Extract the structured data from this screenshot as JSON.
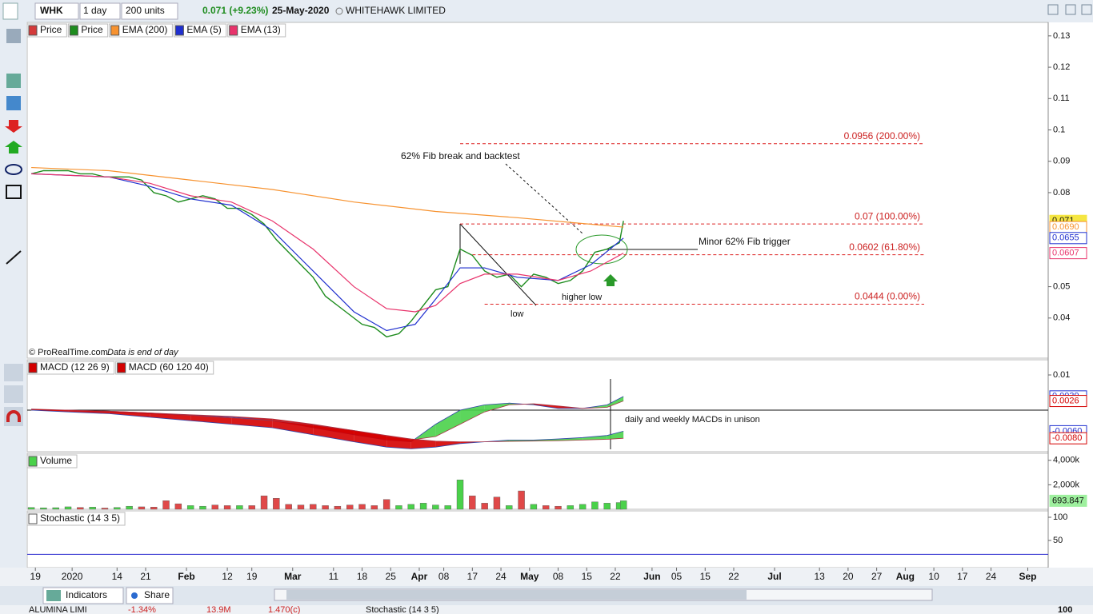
{
  "toolbar": {
    "symbol": "WHK",
    "interval": "1 day",
    "units": "200 units",
    "last": "0.071 (+9.23%)",
    "date": "25-May-2020",
    "name": "WHITEHAWK LIMITED"
  },
  "copyright": "© ProRealTime.com",
  "data_note": "Data is end of day",
  "annotations": [
    "62% Fib break and backtest",
    "Minor 62% Fib trigger",
    "higher low",
    "low",
    "daily and weekly MACDs in unison"
  ],
  "bottom_toolbar": {
    "indicators": "Indicators",
    "share": "Share"
  },
  "watchlist_row": [
    "ALUMINA LIMI",
    "-1.34%",
    "13.9M",
    "1.470(c)",
    "Stochastic (14 3 5)",
    "100"
  ],
  "chart_data": [
    {
      "type": "line",
      "xlim": [
        0,
        250
      ],
      "xticks": [
        {
          "value": 2,
          "label": "19"
        },
        {
          "value": 11,
          "label": "2020"
        },
        {
          "value": 22,
          "label": "14"
        },
        {
          "value": 29,
          "label": "21"
        },
        {
          "value": 39,
          "label": "Feb"
        },
        {
          "value": 49,
          "label": "12"
        },
        {
          "value": 55,
          "label": "19"
        },
        {
          "value": 65,
          "label": "Mar"
        },
        {
          "value": 75,
          "label": "11"
        },
        {
          "value": 82,
          "label": "18"
        },
        {
          "value": 89,
          "label": "25"
        },
        {
          "value": 96,
          "label": "Apr"
        },
        {
          "value": 102,
          "label": "08"
        },
        {
          "value": 109,
          "label": "17"
        },
        {
          "value": 116,
          "label": "24"
        },
        {
          "value": 123,
          "label": "May"
        },
        {
          "value": 130,
          "label": "08"
        },
        {
          "value": 137,
          "label": "15"
        },
        {
          "value": 144,
          "label": "22"
        },
        {
          "value": 153,
          "label": "Jun"
        },
        {
          "value": 159,
          "label": "05"
        },
        {
          "value": 166,
          "label": "15"
        },
        {
          "value": 173,
          "label": "22"
        },
        {
          "value": 183,
          "label": "Jul"
        },
        {
          "value": 194,
          "label": "13"
        },
        {
          "value": 201,
          "label": "20"
        },
        {
          "value": 208,
          "label": "27"
        },
        {
          "value": 215,
          "label": "Aug"
        },
        {
          "value": 222,
          "label": "10"
        },
        {
          "value": 229,
          "label": "17"
        },
        {
          "value": 236,
          "label": "24"
        },
        {
          "value": 245,
          "label": "Sep"
        }
      ],
      "ylim": [
        0.0272,
        0.1343
      ],
      "yticks": [
        0.04,
        0.05,
        0.08,
        0.09,
        0.1,
        0.11,
        0.12,
        0.13
      ],
      "series": [
        {
          "name": "Price",
          "color": "#1e8c1e",
          "down_name": "Price",
          "down_color": "#d43a3a",
          "x": [
            1,
            4,
            7,
            10,
            13,
            16,
            19,
            22,
            25,
            28,
            31,
            34,
            37,
            40,
            43,
            46,
            49,
            52,
            55,
            58,
            61,
            64,
            67,
            70,
            73,
            76,
            79,
            82,
            85,
            88,
            91,
            94,
            97,
            100,
            103,
            106,
            109,
            112,
            115,
            118,
            121,
            124,
            127,
            130,
            133,
            136,
            139,
            142,
            145,
            146
          ],
          "values": [
            0.086,
            0.087,
            0.087,
            0.087,
            0.086,
            0.086,
            0.085,
            0.085,
            0.085,
            0.084,
            0.08,
            0.079,
            0.077,
            0.078,
            0.079,
            0.078,
            0.075,
            0.075,
            0.073,
            0.07,
            0.065,
            0.061,
            0.057,
            0.053,
            0.047,
            0.044,
            0.041,
            0.038,
            0.037,
            0.034,
            0.035,
            0.039,
            0.044,
            0.049,
            0.05,
            0.062,
            0.06,
            0.055,
            0.053,
            0.054,
            0.05,
            0.054,
            0.053,
            0.051,
            0.052,
            0.055,
            0.061,
            0.062,
            0.064,
            0.071
          ]
        },
        {
          "name": "EMA (200)",
          "color": "#f7922f",
          "x": [
            1,
            20,
            40,
            60,
            80,
            100,
            120,
            146
          ],
          "values": [
            0.088,
            0.087,
            0.084,
            0.081,
            0.077,
            0.074,
            0.072,
            0.069
          ]
        },
        {
          "name": "EMA (5)",
          "color": "#1f2fcf",
          "x": [
            1,
            20,
            30,
            40,
            50,
            60,
            70,
            80,
            88,
            95,
            100,
            106,
            112,
            120,
            130,
            138,
            146
          ],
          "values": [
            0.086,
            0.085,
            0.082,
            0.078,
            0.076,
            0.068,
            0.055,
            0.042,
            0.036,
            0.038,
            0.046,
            0.056,
            0.056,
            0.053,
            0.052,
            0.057,
            0.0655
          ]
        },
        {
          "name": "EMA (13)",
          "color": "#e8336b",
          "x": [
            1,
            20,
            30,
            40,
            50,
            60,
            70,
            80,
            88,
            95,
            100,
            106,
            112,
            120,
            130,
            138,
            146
          ],
          "values": [
            0.086,
            0.085,
            0.083,
            0.079,
            0.077,
            0.071,
            0.062,
            0.05,
            0.043,
            0.042,
            0.044,
            0.051,
            0.054,
            0.054,
            0.052,
            0.055,
            0.0607
          ]
        }
      ],
      "fib_levels": [
        {
          "value": 0.0956,
          "label": "0.0956 (200.00%)"
        },
        {
          "value": 0.07,
          "label": "0.07 (100.00%)"
        },
        {
          "value": 0.0602,
          "label": "0.0602 (61.80%)"
        },
        {
          "value": 0.0444,
          "label": "0.0444 (0.00%)"
        }
      ],
      "price_tags": [
        {
          "value": 0.071,
          "label": "0.071",
          "color": "#f5e642"
        },
        {
          "value": 0.069,
          "label": "0.0690",
          "color": "#f7922f"
        },
        {
          "value": 0.0655,
          "label": "0.0655",
          "color": "#1f2fcf"
        },
        {
          "value": 0.0607,
          "label": "0.0607",
          "color": "#e8336b"
        }
      ]
    },
    {
      "type": "macd",
      "ylim": [
        -0.01182,
        0.01432
      ],
      "yticks": [
        0.01
      ],
      "series": [
        {
          "name": "MACD (12 26 9)",
          "color": "#4ad14a",
          "down_color": "#d40000",
          "x": [
            1,
            10,
            20,
            30,
            40,
            50,
            60,
            70,
            80,
            88,
            94,
            100,
            106,
            112,
            118,
            124,
            130,
            136,
            142,
            146
          ],
          "values": [
            0,
            0,
            -0.0005,
            -0.001,
            -0.0015,
            -0.002,
            -0.003,
            -0.005,
            -0.007,
            -0.0085,
            -0.009,
            -0.004,
            0,
            0.0015,
            0.002,
            0.0015,
            0.0005,
            0.0005,
            0.0015,
            0.0039
          ],
          "signal": [
            0,
            0,
            -0.0003,
            -0.0008,
            -0.0013,
            -0.0018,
            -0.0025,
            -0.004,
            -0.0058,
            -0.0075,
            -0.0085,
            -0.0075,
            -0.004,
            -0.0005,
            0.0015,
            0.0018,
            0.0012,
            0.0005,
            0.0008,
            0.0026
          ]
        },
        {
          "name": "MACD (60 120 40)",
          "color": "#4ad14a",
          "down_color": "#d40000",
          "x": [
            1,
            10,
            20,
            30,
            40,
            50,
            60,
            70,
            80,
            88,
            94,
            100,
            106,
            112,
            118,
            124,
            130,
            136,
            142,
            146
          ],
          "values": [
            0,
            -0.0005,
            -0.001,
            -0.002,
            -0.003,
            -0.004,
            -0.005,
            -0.007,
            -0.009,
            -0.0105,
            -0.011,
            -0.0105,
            -0.0095,
            -0.009,
            -0.0085,
            -0.0085,
            -0.0082,
            -0.0078,
            -0.0072,
            -0.006
          ],
          "signal": [
            0.0003,
            0,
            -0.0003,
            -0.0008,
            -0.0015,
            -0.0022,
            -0.003,
            -0.0042,
            -0.0058,
            -0.0072,
            -0.0082,
            -0.0088,
            -0.009,
            -0.009,
            -0.0089,
            -0.0088,
            -0.0087,
            -0.0085,
            -0.0083,
            -0.008
          ]
        }
      ],
      "price_tags": [
        {
          "value": 0.0039,
          "label": "0.0039",
          "color": "#1f2fcf"
        },
        {
          "value": 0.0026,
          "label": "0.0026",
          "color": "#d40000"
        },
        {
          "value": -0.006,
          "label": "-0.0060",
          "color": "#1f2fcf"
        },
        {
          "value": -0.008,
          "label": "-0.0080",
          "color": "#d40000"
        }
      ]
    },
    {
      "type": "bar",
      "name": "Volume",
      "color": "#4ad14a",
      "down_color": "#e04848",
      "ylim": [
        0,
        4571
      ],
      "yticks": [
        {
          "value": 4000,
          "label": "4,000k"
        },
        {
          "value": 2000,
          "label": "2,000k"
        }
      ],
      "x": [
        1,
        4,
        7,
        10,
        13,
        16,
        19,
        22,
        25,
        28,
        31,
        34,
        37,
        40,
        43,
        46,
        49,
        52,
        55,
        58,
        61,
        64,
        67,
        70,
        73,
        76,
        79,
        82,
        85,
        88,
        91,
        94,
        97,
        100,
        103,
        106,
        109,
        112,
        115,
        118,
        121,
        124,
        127,
        130,
        133,
        136,
        139,
        142,
        145,
        146
      ],
      "values": [
        150,
        120,
        130,
        200,
        150,
        180,
        100,
        150,
        250,
        200,
        180,
        700,
        450,
        300,
        250,
        350,
        300,
        300,
        300,
        1100,
        900,
        400,
        350,
        400,
        300,
        250,
        350,
        400,
        300,
        800,
        300,
        400,
        500,
        350,
        300,
        2400,
        1100,
        500,
        1000,
        300,
        1500,
        400,
        300,
        250,
        300,
        400,
        600,
        500,
        550,
        693.847
      ],
      "price_tags": [
        {
          "value": 693.847,
          "label": "693.847",
          "color": "#9ef09e"
        }
      ]
    },
    {
      "type": "stochastic",
      "name": "Stochastic (14 3 5)",
      "color": "#2a2acf",
      "ylim": [
        -8.6,
        113.8
      ],
      "yticks": [
        100,
        50
      ],
      "levels": [
        20
      ]
    }
  ]
}
